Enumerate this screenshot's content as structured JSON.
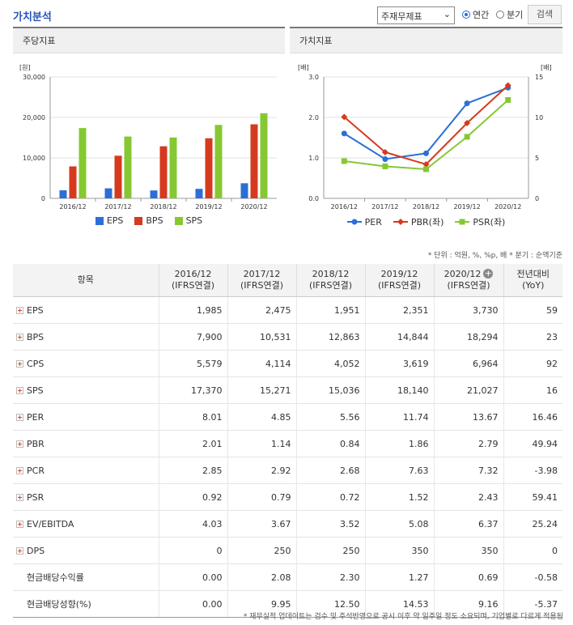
{
  "header": {
    "title": "가치분석",
    "select_value": "주재무제표",
    "radio_annual": "연간",
    "radio_quarter": "분기",
    "search_button": "검색"
  },
  "panels": {
    "left_title": "주당지표",
    "right_title": "가치지표"
  },
  "chart_data": [
    {
      "type": "bar",
      "title": "주당지표",
      "ylabel": "[원]",
      "categories": [
        "2016/12",
        "2017/12",
        "2018/12",
        "2019/12",
        "2020/12"
      ],
      "ylim": [
        0,
        30000
      ],
      "yticks": [
        "0",
        "10,000",
        "20,000",
        "30,000"
      ],
      "series": [
        {
          "name": "EPS",
          "color": "#2b6fd6",
          "values": [
            1985,
            2475,
            1951,
            2351,
            3730
          ]
        },
        {
          "name": "BPS",
          "color": "#d63a1e",
          "values": [
            7900,
            10531,
            12863,
            14844,
            18294
          ]
        },
        {
          "name": "SPS",
          "color": "#86c832",
          "values": [
            17370,
            15271,
            15036,
            18140,
            21027
          ]
        }
      ]
    },
    {
      "type": "line",
      "title": "가치지표",
      "ylabel_left": "[배]",
      "ylabel_right": "[배]",
      "categories": [
        "2016/12",
        "2017/12",
        "2018/12",
        "2019/12",
        "2020/12"
      ],
      "ylim_left": [
        0,
        3
      ],
      "ylim_right": [
        0,
        15
      ],
      "yticks_left": [
        "0.0",
        "1.0",
        "2.0",
        "3.0"
      ],
      "yticks_right": [
        "0",
        "5",
        "10",
        "15"
      ],
      "series": [
        {
          "name": "PER",
          "axis": "right",
          "marker": "circle",
          "color": "#2b6fd6",
          "values": [
            8.01,
            4.85,
            5.56,
            11.74,
            13.67
          ]
        },
        {
          "name": "PBR(좌)",
          "axis": "left",
          "marker": "diamond",
          "color": "#d63a1e",
          "values": [
            2.01,
            1.14,
            0.84,
            1.86,
            2.79
          ]
        },
        {
          "name": "PSR(좌)",
          "axis": "left",
          "marker": "square",
          "color": "#86c832",
          "values": [
            0.92,
            0.79,
            0.72,
            1.52,
            2.43
          ]
        }
      ]
    }
  ],
  "unit_note": "* 단위 : 억원, %, %p, 배    * 분기 : 순액기준",
  "table": {
    "headers": [
      {
        "line1": "항목",
        "line2": ""
      },
      {
        "line1": "2016/12",
        "line2": "(IFRS연결)"
      },
      {
        "line1": "2017/12",
        "line2": "(IFRS연결)"
      },
      {
        "line1": "2018/12",
        "line2": "(IFRS연결)"
      },
      {
        "line1": "2019/12",
        "line2": "(IFRS연결)"
      },
      {
        "line1": "2020/12",
        "line2": "(IFRS연결)"
      },
      {
        "line1": "전년대비",
        "line2": "(YoY)"
      }
    ],
    "rows": [
      {
        "label": "EPS",
        "expand": true,
        "values": [
          "1,985",
          "2,475",
          "1,951",
          "2,351",
          "3,730",
          "59"
        ]
      },
      {
        "label": "BPS",
        "expand": true,
        "values": [
          "7,900",
          "10,531",
          "12,863",
          "14,844",
          "18,294",
          "23"
        ]
      },
      {
        "label": "CPS",
        "expand": true,
        "values": [
          "5,579",
          "4,114",
          "4,052",
          "3,619",
          "6,964",
          "92"
        ]
      },
      {
        "label": "SPS",
        "expand": true,
        "values": [
          "17,370",
          "15,271",
          "15,036",
          "18,140",
          "21,027",
          "16"
        ]
      },
      {
        "label": "PER",
        "expand": true,
        "values": [
          "8.01",
          "4.85",
          "5.56",
          "11.74",
          "13.67",
          "16.46"
        ]
      },
      {
        "label": "PBR",
        "expand": true,
        "values": [
          "2.01",
          "1.14",
          "0.84",
          "1.86",
          "2.79",
          "49.94"
        ]
      },
      {
        "label": "PCR",
        "expand": true,
        "values": [
          "2.85",
          "2.92",
          "2.68",
          "7.63",
          "7.32",
          "-3.98"
        ]
      },
      {
        "label": "PSR",
        "expand": true,
        "values": [
          "0.92",
          "0.79",
          "0.72",
          "1.52",
          "2.43",
          "59.41"
        ]
      },
      {
        "label": "EV/EBITDA",
        "expand": true,
        "values": [
          "4.03",
          "3.67",
          "3.52",
          "5.08",
          "6.37",
          "25.24"
        ]
      },
      {
        "label": "DPS",
        "expand": true,
        "values": [
          "0",
          "250",
          "250",
          "350",
          "350",
          "0"
        ]
      },
      {
        "label": "현금배당수익률",
        "expand": false,
        "values": [
          "0.00",
          "2.08",
          "2.30",
          "1.27",
          "0.69",
          "-0.58"
        ]
      },
      {
        "label": "현금배당성향(%)",
        "expand": false,
        "values": [
          "0.00",
          "9.95",
          "12.50",
          "14.53",
          "9.16",
          "-5.37"
        ]
      }
    ]
  },
  "footnote": "* 재무실적 업데이트는 검수 및 주석반영으로 공시 이후 약 일주일 정도 소요되며, 기업별로 다르게 적용됨",
  "colors": {
    "accent": "#2855b8",
    "negative": "#e0202a"
  }
}
